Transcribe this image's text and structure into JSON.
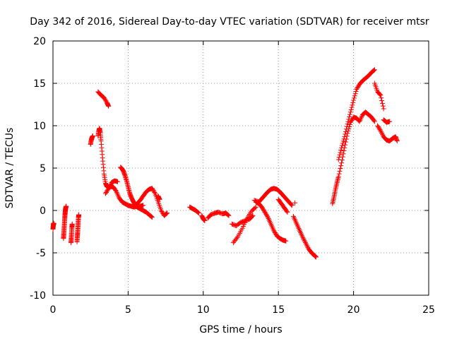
{
  "chart_data": {
    "type": "scatter",
    "title": "Day 342 of 2016, Sidereal Day-to-day VTEC variation (SDTVAR) for receiver mtsr",
    "xlabel": "GPS time / hours",
    "ylabel": "SDTVAR / TECUs",
    "xlim": [
      0,
      25
    ],
    "ylim": [
      -10,
      20
    ],
    "xticks": [
      0,
      5,
      10,
      15,
      20,
      25
    ],
    "yticks": [
      -10,
      -5,
      0,
      5,
      10,
      15,
      20
    ],
    "grid": true,
    "marker": "+",
    "color": "#ff0000",
    "series": [
      {
        "name": "seg01",
        "x": [
          0.0,
          0.02,
          0.04,
          0.06
        ],
        "y": [
          -2.2,
          -1.8,
          -1.5,
          -1.6
        ]
      },
      {
        "name": "seg02",
        "x": [
          0.7,
          0.72,
          0.74,
          0.76,
          0.78,
          0.8,
          0.82,
          0.84,
          0.86,
          0.88
        ],
        "y": [
          -3.3,
          -2.8,
          -2.2,
          -1.6,
          -1.0,
          -0.5,
          -0.1,
          0.2,
          0.4,
          0.5
        ]
      },
      {
        "name": "seg03",
        "x": [
          1.2,
          1.22,
          1.24,
          1.26,
          1.28
        ],
        "y": [
          -3.8,
          -3.3,
          -2.7,
          -2.0,
          -1.6
        ]
      },
      {
        "name": "seg04",
        "x": [
          1.6,
          1.62,
          1.64,
          1.66,
          1.68,
          1.7,
          1.72
        ],
        "y": [
          -3.7,
          -3.1,
          -2.6,
          -2.0,
          -1.4,
          -0.8,
          -0.5
        ]
      },
      {
        "name": "seg05",
        "x": [
          2.5,
          2.55,
          2.6,
          2.65
        ],
        "y": [
          7.8,
          8.3,
          8.6,
          8.8
        ]
      },
      {
        "name": "seg06",
        "x": [
          3.0,
          3.05,
          3.1,
          3.15,
          3.2,
          3.3,
          3.4,
          3.5,
          3.6,
          3.7,
          3.8,
          4.0,
          4.2,
          4.4,
          4.6,
          4.8,
          5.0,
          5.2,
          5.4,
          5.6,
          5.8,
          6.0
        ],
        "y": [
          8.8,
          9.4,
          9.7,
          9.2,
          8.2,
          6.2,
          4.3,
          3.2,
          2.8,
          2.7,
          2.8,
          2.8,
          2.3,
          1.5,
          1.0,
          0.8,
          0.6,
          0.5,
          0.4,
          0.5,
          0.5,
          0.6
        ]
      },
      {
        "name": "seg07",
        "x": [
          3.0,
          3.2,
          3.4,
          3.6,
          3.7
        ],
        "y": [
          14.0,
          13.6,
          13.3,
          12.7,
          12.3
        ]
      },
      {
        "name": "seg08",
        "x": [
          3.5,
          3.7,
          3.9,
          4.1,
          4.3
        ],
        "y": [
          2.0,
          2.6,
          3.3,
          3.5,
          3.4
        ]
      },
      {
        "name": "seg09",
        "x": [
          4.5,
          4.6,
          4.7,
          4.8,
          4.9,
          5.0,
          5.1,
          5.2,
          5.3,
          5.4,
          5.5,
          5.6,
          5.8,
          6.0,
          6.2,
          6.4,
          6.6
        ],
        "y": [
          5.1,
          4.9,
          4.6,
          4.1,
          3.5,
          2.8,
          2.1,
          1.6,
          1.2,
          0.9,
          0.6,
          0.4,
          0.2,
          0.0,
          -0.2,
          -0.5,
          -0.8
        ]
      },
      {
        "name": "seg10",
        "x": [
          5.6,
          5.8,
          6.0,
          6.2,
          6.4,
          6.6,
          6.8,
          7.0,
          7.2,
          7.4,
          7.6
        ],
        "y": [
          0.8,
          1.2,
          1.7,
          2.2,
          2.5,
          2.6,
          2.0,
          1.0,
          0.0,
          -0.6,
          -0.3
        ]
      },
      {
        "name": "seg11",
        "x": [
          7.0,
          7.1
        ],
        "y": [
          1.7,
          1.3
        ]
      },
      {
        "name": "seg12",
        "x": [
          9.1,
          9.3,
          9.5,
          9.7
        ],
        "y": [
          0.4,
          0.2,
          0.0,
          -0.3
        ]
      },
      {
        "name": "seg13",
        "x": [
          9.9,
          10.0,
          10.1
        ],
        "y": [
          -0.6,
          -1.0,
          -1.2
        ]
      },
      {
        "name": "seg14",
        "x": [
          10.3,
          10.5,
          10.8,
          11.0,
          11.3,
          11.5,
          11.7
        ],
        "y": [
          -0.9,
          -0.5,
          -0.3,
          -0.2,
          -0.4,
          -0.3,
          -0.6
        ]
      },
      {
        "name": "seg15",
        "x": [
          11.9,
          12.2,
          12.5,
          12.8,
          13.1,
          13.3
        ],
        "y": [
          -1.6,
          -1.8,
          -1.4,
          -1.2,
          -1.0,
          -0.6
        ]
      },
      {
        "name": "seg16",
        "x": [
          12.0,
          12.3,
          12.6,
          12.9,
          13.2,
          13.5
        ],
        "y": [
          -3.8,
          -3.1,
          -2.1,
          -1.0,
          -0.1,
          0.4
        ]
      },
      {
        "name": "seg17",
        "x": [
          13.4,
          13.7,
          13.9,
          14.1,
          14.3,
          14.5,
          14.7,
          14.9,
          15.1,
          15.3,
          15.5,
          15.7,
          15.9
        ],
        "y": [
          1.2,
          1.0,
          1.4,
          1.8,
          2.2,
          2.5,
          2.6,
          2.5,
          2.2,
          1.8,
          1.4,
          1.0,
          0.6
        ]
      },
      {
        "name": "seg18",
        "x": [
          13.5,
          13.7,
          13.9,
          14.1,
          14.3,
          14.5,
          14.7,
          14.9,
          15.1,
          15.3,
          15.5
        ],
        "y": [
          1.0,
          0.8,
          0.4,
          -0.2,
          -0.8,
          -1.6,
          -2.4,
          -3.0,
          -3.3,
          -3.5,
          -3.6
        ]
      },
      {
        "name": "seg19",
        "x": [
          15.0,
          15.2,
          15.4,
          15.6
        ],
        "y": [
          1.3,
          0.8,
          0.3,
          -0.2
        ]
      },
      {
        "name": "seg20",
        "x": [
          16.0,
          16.2,
          16.4,
          16.6,
          16.8,
          17.0,
          17.2,
          17.4,
          17.5
        ],
        "y": [
          -0.7,
          -1.5,
          -2.3,
          -3.1,
          -3.8,
          -4.5,
          -5.0,
          -5.3,
          -5.5
        ]
      },
      {
        "name": "seg21",
        "x": [
          16.1
        ],
        "y": [
          0.9
        ]
      },
      {
        "name": "seg22",
        "x": [
          18.6,
          18.7,
          18.8,
          18.9,
          19.0,
          19.2,
          19.4,
          19.6,
          19.8,
          20.0,
          20.2,
          20.4,
          20.6,
          20.8,
          21.0,
          21.2,
          21.4
        ],
        "y": [
          0.8,
          1.6,
          2.5,
          3.3,
          4.0,
          5.6,
          7.4,
          9.1,
          10.4,
          11.0,
          10.9,
          10.5,
          11.3,
          11.6,
          11.3,
          11.0,
          10.5
        ]
      },
      {
        "name": "seg23",
        "x": [
          19.0,
          19.2,
          19.4,
          19.6,
          19.8,
          20.0,
          20.2,
          20.4,
          20.6,
          20.8,
          21.0,
          21.2,
          21.4
        ],
        "y": [
          6.0,
          7.4,
          8.7,
          10.2,
          11.6,
          13.0,
          14.3,
          14.9,
          15.3,
          15.6,
          15.9,
          16.3,
          16.6
        ]
      },
      {
        "name": "seg24",
        "x": [
          21.4,
          21.6,
          21.8,
          22.0
        ],
        "y": [
          15.0,
          14.0,
          13.6,
          12.0
        ]
      },
      {
        "name": "seg25",
        "x": [
          21.6,
          21.8,
          22.0,
          22.2,
          22.4,
          22.6,
          22.8,
          22.9
        ],
        "y": [
          10.0,
          9.4,
          8.7,
          8.3,
          8.2,
          8.5,
          8.7,
          8.2
        ]
      },
      {
        "name": "seg26",
        "x": [
          22.0,
          22.2,
          22.4
        ],
        "y": [
          10.7,
          10.4,
          10.5
        ]
      }
    ]
  }
}
